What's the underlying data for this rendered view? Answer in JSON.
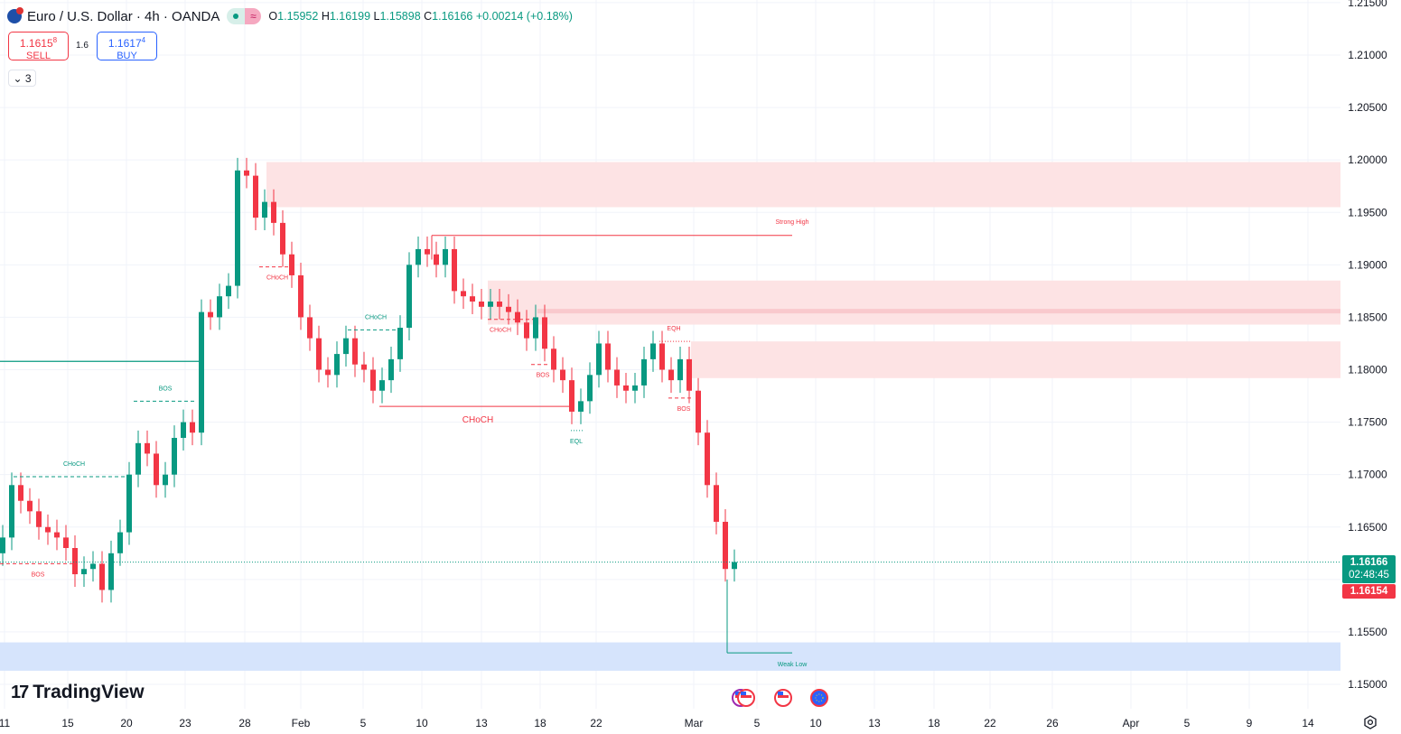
{
  "header": {
    "symbol": "Euro / U.S. Dollar · 4h · OANDA",
    "open_label": "O",
    "open": "1.15952",
    "high_label": "H",
    "high": "1.16199",
    "low_label": "L",
    "low": "1.15898",
    "close_label": "C",
    "close": "1.16166",
    "change": "+0.00214 (+0.18%)",
    "market_status_icon": "dot-icon",
    "delay_icon": "approx-icon",
    "delay_glyph": "≈"
  },
  "trade": {
    "sell_price": "1.1615",
    "sell_sup": "8",
    "sell_label": "SELL",
    "spread": "1.6",
    "buy_price": "1.1617",
    "buy_sup": "4",
    "buy_label": "BUY"
  },
  "indicators_toggle": {
    "glyph": "⌄",
    "count": "3"
  },
  "logo": {
    "text": "TradingView",
    "mark": "17"
  },
  "colors": {
    "up": "#089981",
    "down": "#f23645",
    "supply_zone": "#fde3e4",
    "demand_zone": "#d6e4fc",
    "grid": "#f0f3fa"
  },
  "price_axis": {
    "ticks": [
      "1.21500",
      "1.21000",
      "1.20500",
      "1.20000",
      "1.19500",
      "1.19000",
      "1.18500",
      "1.18000",
      "1.17500",
      "1.17000",
      "1.16500",
      "1.16000",
      "1.15500",
      "1.15000"
    ],
    "current_price": "1.16166",
    "countdown": "02:48:45",
    "bid_price": "1.16154"
  },
  "time_axis": {
    "ticks": [
      "11",
      "15",
      "20",
      "23",
      "28",
      "Feb",
      "5",
      "10",
      "13",
      "18",
      "22",
      "Mar",
      "5",
      "10",
      "13",
      "18",
      "22",
      "26",
      "Apr",
      "5",
      "9",
      "14"
    ]
  },
  "chart_data": {
    "type": "candlestick",
    "symbol": "EURUSD",
    "timeframe": "4h",
    "ylim": [
      1.15,
      1.215
    ],
    "close": [
      1.164,
      1.169,
      1.1675,
      1.1665,
      1.165,
      1.1645,
      1.164,
      1.163,
      1.1605,
      1.161,
      1.1615,
      1.159,
      1.1625,
      1.1645,
      1.17,
      1.173,
      1.172,
      1.169,
      1.17,
      1.1735,
      1.175,
      1.174,
      1.1855,
      1.185,
      1.187,
      1.188,
      1.199,
      1.1985,
      1.1945,
      1.196,
      1.194,
      1.191,
      1.189,
      1.185,
      1.183,
      1.18,
      1.1795,
      1.1815,
      1.183,
      1.1805,
      1.18,
      1.178,
      1.179,
      1.181,
      1.184,
      1.19,
      1.1915,
      1.191,
      1.19,
      1.1915,
      1.1875,
      1.187,
      1.1865,
      1.186,
      1.1865,
      1.186,
      1.1855,
      1.1845,
      1.183,
      1.185,
      1.182,
      1.18,
      1.179,
      1.176,
      1.177,
      1.1795,
      1.1825,
      1.18,
      1.1785,
      1.178,
      1.1785,
      1.181,
      1.1825,
      1.18,
      1.179,
      1.181,
      1.178,
      1.174,
      1.169,
      1.1655,
      1.161,
      1.16166
    ],
    "zones": [
      {
        "kind": "supply",
        "from": 1.1955,
        "to": 1.1998
      },
      {
        "kind": "supply",
        "from": 1.1843,
        "to": 1.1885
      },
      {
        "kind": "supply",
        "from": 1.1792,
        "to": 1.1827
      },
      {
        "kind": "demand",
        "from": 1.1513,
        "to": 1.154
      }
    ],
    "annotations": [
      {
        "text": "CHoCH",
        "price": 1.1698,
        "color": "#089981",
        "style": "dashed"
      },
      {
        "text": "BOS",
        "price": 1.1615,
        "color": "#f23645",
        "style": "dashed"
      },
      {
        "text": "BOS",
        "price": 1.177,
        "color": "#089981",
        "style": "dashed"
      },
      {
        "text": "CHoCH",
        "price": 1.1898,
        "color": "#f23645",
        "style": "dashed"
      },
      {
        "text": "CHoCH",
        "price": 1.1838,
        "color": "#089981",
        "style": "dashed"
      },
      {
        "text": "CHoCH",
        "price": 1.1765,
        "color": "#f23645",
        "style": "solid"
      },
      {
        "text": "CHoCH",
        "price": 1.1848,
        "color": "#f23645",
        "style": "dashed"
      },
      {
        "text": "BOS",
        "price": 1.1805,
        "color": "#f23645",
        "style": "dashed"
      },
      {
        "text": "EQL",
        "price": 1.1742,
        "color": "#089981",
        "style": "dotted"
      },
      {
        "text": "EQH",
        "price": 1.1827,
        "color": "#f23645",
        "style": "dotted"
      },
      {
        "text": "BOS",
        "price": 1.1773,
        "color": "#f23645",
        "style": "dashed"
      },
      {
        "text": "Strong High",
        "price": 1.1928,
        "color": "#f23645",
        "style": "solid"
      },
      {
        "text": "Weak Low",
        "price": 1.153,
        "color": "#089981",
        "style": "solid"
      }
    ],
    "events": [
      "us-flag-icon",
      "us-flag-icon",
      "us-flag-icon",
      "eu-flag-icon"
    ]
  }
}
